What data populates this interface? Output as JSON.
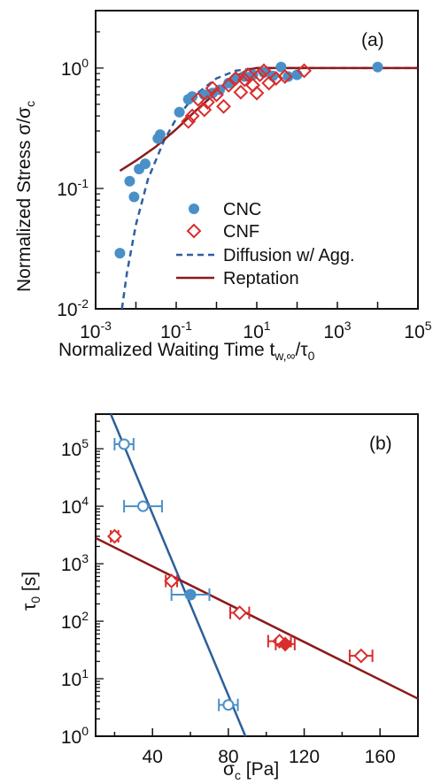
{
  "colors": {
    "cnc": "#4a90c8",
    "cnf": "#d92c2c",
    "diffusion": "#2f5f9f",
    "reptation": "#8b1a1a",
    "cnc_fit": "#2c5f9a",
    "cnf_fit": "#8b1a1a"
  },
  "chart_data": [
    {
      "type": "scatter",
      "panel_label": "(a)",
      "xlabel": "Normalized Waiting Time t",
      "xlabel_sub": "w,∞",
      "xlabel_tail": "/τ",
      "xlabel_tail_sub": "0",
      "ylabel": "Normalized Stress σ/σ",
      "ylabel_sub": "c",
      "x_scale": "log",
      "y_scale": "log",
      "xlim": [
        0.001,
        100000
      ],
      "ylim": [
        0.01,
        3
      ],
      "x_ticks": [
        {
          "value": 0.001,
          "base": "10",
          "exp": "-3"
        },
        {
          "value": 0.1,
          "base": "10",
          "exp": "-1"
        },
        {
          "value": 10,
          "base": "10",
          "exp": "1"
        },
        {
          "value": 1000,
          "base": "10",
          "exp": "3"
        },
        {
          "value": 100000,
          "base": "10",
          "exp": "5"
        }
      ],
      "y_ticks": [
        {
          "value": 0.01,
          "label": "10",
          "exp": "-2"
        },
        {
          "value": 0.1,
          "label": "10",
          "exp": "-1"
        },
        {
          "value": 1,
          "label": "10",
          "exp": "0"
        }
      ],
      "legend_position": "lower-right",
      "series": [
        {
          "name": "CNC",
          "marker": "filled-circle",
          "points": [
            [
              0.004,
              0.029
            ],
            [
              0.007,
              0.115
            ],
            [
              0.009,
              0.085
            ],
            [
              0.012,
              0.145
            ],
            [
              0.017,
              0.16
            ],
            [
              0.035,
              0.26
            ],
            [
              0.04,
              0.28
            ],
            [
              0.12,
              0.43
            ],
            [
              0.2,
              0.55
            ],
            [
              0.25,
              0.58
            ],
            [
              0.5,
              0.6
            ],
            [
              0.8,
              0.62
            ],
            [
              1.2,
              0.66
            ],
            [
              2,
              0.75
            ],
            [
              3,
              0.82
            ],
            [
              5,
              0.85
            ],
            [
              8,
              0.88
            ],
            [
              15,
              0.92
            ],
            [
              25,
              0.86
            ],
            [
              40,
              1.02
            ],
            [
              60,
              0.85
            ],
            [
              100,
              0.88
            ],
            [
              10000,
              1.02
            ]
          ]
        },
        {
          "name": "CNF",
          "marker": "open-diamond",
          "points": [
            [
              0.2,
              0.36
            ],
            [
              0.25,
              0.4
            ],
            [
              0.35,
              0.55
            ],
            [
              0.5,
              0.45
            ],
            [
              0.6,
              0.52
            ],
            [
              0.8,
              0.68
            ],
            [
              1.0,
              0.6
            ],
            [
              1.5,
              0.48
            ],
            [
              2,
              0.72
            ],
            [
              3,
              0.82
            ],
            [
              4,
              0.63
            ],
            [
              5,
              0.8
            ],
            [
              6,
              0.88
            ],
            [
              8,
              0.72
            ],
            [
              10,
              0.62
            ],
            [
              12,
              0.88
            ],
            [
              15,
              0.95
            ],
            [
              20,
              0.75
            ],
            [
              30,
              0.82
            ],
            [
              50,
              0.85
            ],
            [
              150,
              0.95
            ]
          ]
        },
        {
          "name": "Diffusion w/ Agg.",
          "style": "dashed-line",
          "points": [
            [
              0.0045,
              0.01
            ],
            [
              0.006,
              0.02
            ],
            [
              0.01,
              0.05
            ],
            [
              0.02,
              0.12
            ],
            [
              0.05,
              0.25
            ],
            [
              0.1,
              0.38
            ],
            [
              0.3,
              0.6
            ],
            [
              1,
              0.82
            ],
            [
              3,
              0.95
            ],
            [
              10,
              1.0
            ],
            [
              100,
              1.0
            ],
            [
              100000,
              1.0
            ]
          ]
        },
        {
          "name": "Reptation",
          "style": "solid-line",
          "points": [
            [
              0.004,
              0.14
            ],
            [
              0.01,
              0.17
            ],
            [
              0.03,
              0.22
            ],
            [
              0.1,
              0.31
            ],
            [
              0.3,
              0.44
            ],
            [
              1,
              0.63
            ],
            [
              3,
              0.85
            ],
            [
              6,
              0.97
            ],
            [
              10,
              1.0
            ],
            [
              100,
              1.0
            ],
            [
              100000,
              1.0
            ]
          ]
        }
      ]
    },
    {
      "type": "scatter",
      "panel_label": "(b)",
      "xlabel": "σ",
      "xlabel_sub": "c",
      "xlabel_tail": " [Pa]",
      "ylabel": "τ",
      "ylabel_sub": "0",
      "ylabel_tail": " [s]",
      "x_scale": "linear",
      "y_scale": "log",
      "xlim": [
        10,
        180
      ],
      "ylim": [
        1,
        400000
      ],
      "x_ticks": [
        40,
        80,
        120,
        160
      ],
      "y_ticks": [
        {
          "value": 1,
          "label": "10",
          "exp": "0"
        },
        {
          "value": 10,
          "label": "10",
          "exp": "1"
        },
        {
          "value": 100,
          "label": "10",
          "exp": "2"
        },
        {
          "value": 1000,
          "label": "10",
          "exp": "3"
        },
        {
          "value": 10000,
          "label": "10",
          "exp": "4"
        },
        {
          "value": 100000,
          "label": "10",
          "exp": "5"
        }
      ],
      "series": [
        {
          "name": "CNC",
          "marker": "open-circle",
          "points": [
            {
              "x": 25,
              "y": 120000,
              "xerr": 5
            },
            {
              "x": 35,
              "y": 10000,
              "xerr": 10
            },
            {
              "x": 60,
              "y": 290,
              "xerr": 10,
              "filled": true
            },
            {
              "x": 80,
              "y": 3.5,
              "xerr": 5
            }
          ],
          "fit": {
            "x1": 18,
            "y1": 400000,
            "x2": 89,
            "y2": 1
          }
        },
        {
          "name": "CNF",
          "marker": "open-diamond",
          "points": [
            {
              "x": 20,
              "y": 3000,
              "xerr": 2
            },
            {
              "x": 50,
              "y": 500,
              "xerr": 3
            },
            {
              "x": 86,
              "y": 140,
              "xerr": 5
            },
            {
              "x": 107,
              "y": 45,
              "xerr": 6
            },
            {
              "x": 110,
              "y": 40,
              "xerr": 5,
              "filled": true
            },
            {
              "x": 150,
              "y": 25,
              "xerr": 6
            }
          ],
          "fit": {
            "x1": 10,
            "y1": 2800,
            "x2": 180,
            "y2": 4.5
          }
        }
      ]
    }
  ]
}
